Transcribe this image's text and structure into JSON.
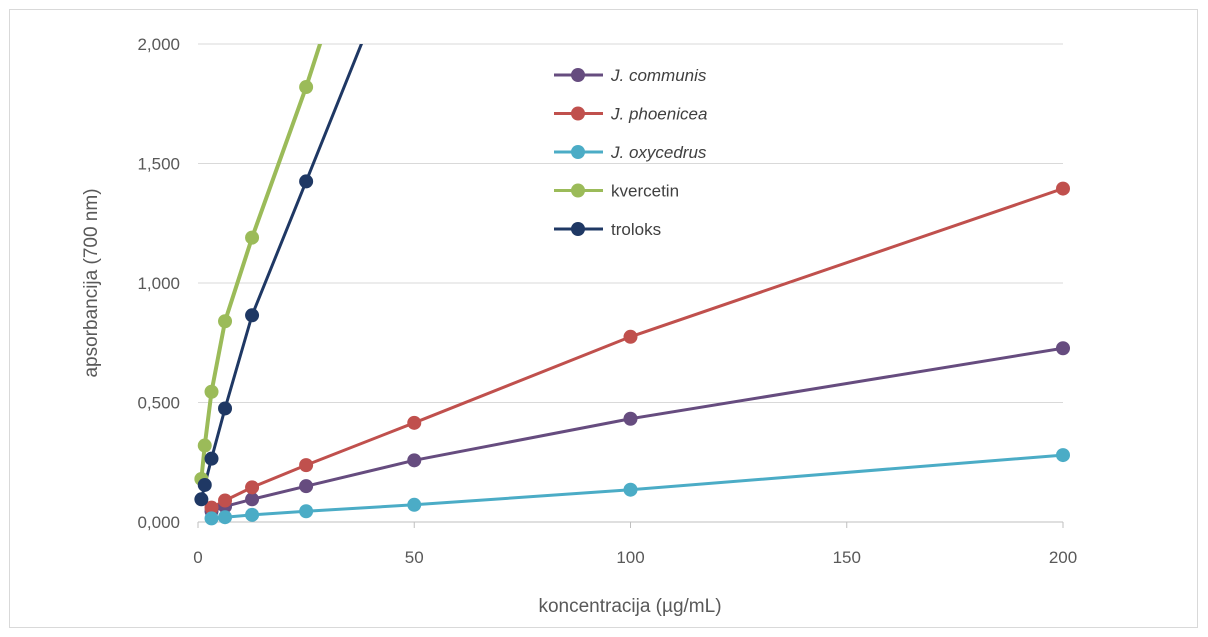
{
  "chart_data": {
    "type": "line",
    "xlabel": "koncentracija (µg/mL)",
    "ylabel": "apsorbancija (700 nm)",
    "xlim": [
      0,
      200
    ],
    "ylim": [
      0,
      2
    ],
    "x_ticks": [
      0,
      50,
      100,
      150,
      200
    ],
    "x_tick_labels": [
      "0",
      "50",
      "100",
      "150",
      "200"
    ],
    "y_ticks": [
      0,
      0.5,
      1,
      1.5,
      2
    ],
    "y_tick_labels": [
      "0,000",
      "0,500",
      "1,000",
      "1,500",
      "2,000"
    ],
    "grid": "horizontal",
    "legend_position": "top-center",
    "series": [
      {
        "name": "J. communis",
        "italic": true,
        "color": "#664c7f",
        "x": [
          3.125,
          6.25,
          12.5,
          25,
          50,
          100,
          200
        ],
        "y": [
          0.045,
          0.065,
          0.095,
          0.15,
          0.258,
          0.432,
          0.727
        ],
        "error": [
          0,
          0,
          0,
          0,
          0,
          0,
          0.03
        ]
      },
      {
        "name": "J. phoenicea",
        "italic": true,
        "color": "#c0504d",
        "x": [
          3.125,
          6.25,
          12.5,
          25,
          50,
          100,
          200
        ],
        "y": [
          0.06,
          0.09,
          0.145,
          0.238,
          0.415,
          0.775,
          1.395
        ],
        "error": [
          0,
          0,
          0,
          0,
          0,
          0,
          0.03
        ]
      },
      {
        "name": "J. oxycedrus",
        "italic": true,
        "color": "#4bacc6",
        "x": [
          3.125,
          6.25,
          12.5,
          25,
          50,
          100,
          200
        ],
        "y": [
          0.015,
          0.02,
          0.03,
          0.045,
          0.072,
          0.135,
          0.28
        ],
        "error": [
          0,
          0,
          0,
          0,
          0,
          0,
          0
        ]
      },
      {
        "name": "kvercetin",
        "italic": false,
        "color": "#9bbb59",
        "x": [
          0.78,
          1.56,
          3.125,
          6.25,
          12.5,
          25,
          30
        ],
        "y": [
          0.18,
          0.32,
          0.545,
          0.84,
          1.19,
          1.82,
          2.1
        ],
        "error": [
          0,
          0,
          0,
          0,
          0,
          0,
          0
        ]
      },
      {
        "name": "troloks",
        "italic": false,
        "color": "#1f3864",
        "x": [
          0.78,
          1.56,
          3.125,
          6.25,
          12.5,
          25,
          40
        ],
        "y": [
          0.095,
          0.155,
          0.265,
          0.475,
          0.865,
          1.425,
          2.1
        ],
        "error": [
          0,
          0,
          0,
          0,
          0,
          0,
          0
        ]
      }
    ]
  }
}
